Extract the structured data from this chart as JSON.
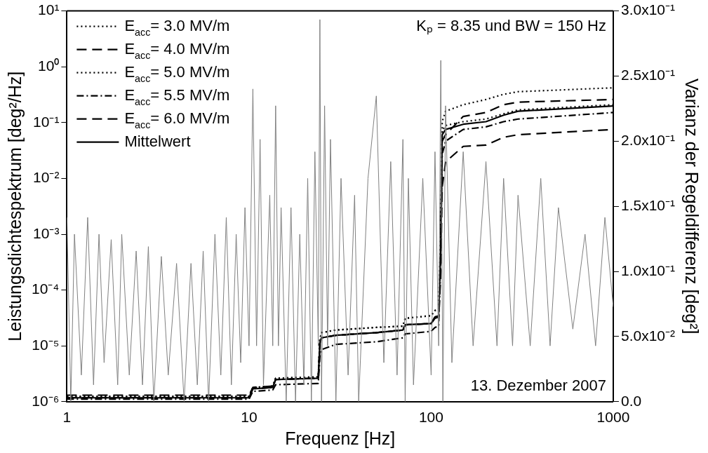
{
  "chart_data": {
    "type": "line",
    "xlabel": "Frequenz [Hz]",
    "ylabel": "Leistungsdichtespektrum [deg²/Hz]",
    "y2label": "Varianz der Regeldifferenz [deg²]",
    "log": "xy",
    "marker": "none",
    "legend": "top left",
    "xlim": [
      1,
      1000
    ],
    "xticks": [
      1,
      10,
      100,
      1000
    ],
    "ylim": [
      1e-06,
      10
    ],
    "yticks": [
      {
        "value": 1e-06,
        "label": "10⁻⁶"
      },
      {
        "value": 1e-05,
        "label": "10⁻⁵"
      },
      {
        "value": 0.0001,
        "label": "10⁻⁴"
      },
      {
        "value": 0.001,
        "label": "10⁻³"
      },
      {
        "value": 0.01,
        "label": "10⁻²"
      },
      {
        "value": 0.1,
        "label": "10⁻¹"
      },
      {
        "value": 1,
        "label": "10⁰"
      },
      {
        "value": 10,
        "label": "10¹"
      }
    ],
    "y2lim": [
      0,
      0.3
    ],
    "y2ticks": [
      {
        "value": 0,
        "label": "0.0"
      },
      {
        "value": 0.05,
        "label": "5.0x10⁻²"
      },
      {
        "value": 0.1,
        "label": "1.0x10⁻¹"
      },
      {
        "value": 0.15,
        "label": "1.5x10⁻¹"
      },
      {
        "value": 0.2,
        "label": "2.0x10⁻¹"
      },
      {
        "value": 0.25,
        "label": "2.5x10⁻¹"
      },
      {
        "value": 0.3,
        "label": "3.0x10⁻¹"
      }
    ],
    "annotations": [
      "Kₚ = 8.35 und BW = 150 Hz",
      "13. Dezember 2007"
    ],
    "series": [
      {
        "color": "#808080",
        "line_style": "solid",
        "x": [
          1,
          1.05,
          1.1,
          1.2,
          1.3,
          1.4,
          1.5,
          1.6,
          1.75,
          1.9,
          2,
          2.2,
          2.4,
          2.6,
          2.8,
          3,
          3.3,
          3.6,
          4,
          4.4,
          4.8,
          5.2,
          5.6,
          6,
          6.5,
          7,
          7.5,
          8,
          8.5,
          9,
          9.5,
          10,
          10.5,
          11,
          11.5,
          12,
          13,
          13.5,
          14,
          14.5,
          15,
          16,
          17,
          18,
          19,
          20,
          21,
          22,
          23,
          24,
          24.5,
          25,
          26,
          27,
          28,
          30,
          32,
          35,
          38,
          40,
          45,
          50,
          55,
          60,
          65,
          70,
          72,
          75,
          80,
          90,
          100,
          105,
          110,
          113,
          116,
          120,
          130,
          150,
          170,
          200,
          230,
          250,
          280,
          300,
          350,
          400,
          450,
          500,
          600,
          700,
          800,
          900,
          1000
        ],
        "values": [
          0.002,
          1e-06,
          0.001,
          3e-06,
          0.002,
          2e-06,
          0.001,
          5e-06,
          0.0008,
          2e-06,
          0.001,
          3e-06,
          0.0005,
          2e-06,
          0.0006,
          1e-06,
          0.0004,
          3e-06,
          0.0003,
          1e-06,
          0.0003,
          2e-06,
          0.0005,
          1e-06,
          0.001,
          3e-06,
          0.002,
          2e-06,
          0.001,
          5e-06,
          0.003,
          1e-05,
          0.4,
          1e-05,
          0.05,
          2e-06,
          0.005,
          1e-05,
          0.2,
          1e-05,
          0.003,
          1e-06,
          0.003,
          1e-06,
          0.001,
          2e-06,
          0.01,
          1e-06,
          0.03,
          1e-05,
          7,
          1e-06,
          0.2,
          1e-05,
          0.05,
          1e-06,
          0.01,
          3e-06,
          0.005,
          1e-06,
          0.01,
          0.3,
          5e-06,
          0.02,
          3e-06,
          0.05,
          1e-06,
          0.01,
          2e-06,
          0.01,
          3e-06,
          0.03,
          1e-05,
          1.3,
          1e-06,
          0.2,
          5e-06,
          0.03,
          1e-05,
          0.02,
          1e-05,
          0.01,
          1e-05,
          0.005,
          1e-05,
          0.01,
          1e-05,
          0.003,
          2e-05,
          0.001,
          1e-05,
          0.002,
          5e-05
        ]
      },
      {
        "name": "E$_{acc}$= 3.0 MV/m",
        "color": "#000000",
        "axis": "y2",
        "line_style": "dotted",
        "x": [
          1,
          10,
          10.5,
          11,
          13.5,
          14,
          24,
          24.5,
          25,
          30,
          50,
          70,
          72,
          100,
          105,
          110,
          113,
          115,
          120,
          150,
          200,
          250,
          300,
          1000
        ],
        "values": [
          0.004,
          0.004,
          0.011,
          0.011,
          0.012,
          0.018,
          0.019,
          0.048,
          0.053,
          0.055,
          0.057,
          0.058,
          0.064,
          0.066,
          0.07,
          0.071,
          0.13,
          0.208,
          0.212,
          0.215,
          0.217,
          0.221,
          0.224,
          0.228
        ]
      },
      {
        "name": "E$_{acc}$= 4.0 MV/m",
        "color": "#000000",
        "axis": "y2",
        "line_style": "dashed",
        "x": [
          1,
          10,
          10.5,
          11,
          13.5,
          14,
          24,
          24.5,
          25,
          30,
          50,
          70,
          72,
          100,
          105,
          110,
          113,
          115,
          120,
          150,
          200,
          250,
          300,
          1000
        ],
        "values": [
          0.003,
          0.003,
          0.01,
          0.01,
          0.011,
          0.017,
          0.018,
          0.045,
          0.049,
          0.051,
          0.053,
          0.055,
          0.059,
          0.06,
          0.065,
          0.066,
          0.12,
          0.2,
          0.205,
          0.219,
          0.222,
          0.228,
          0.23,
          0.232
        ]
      },
      {
        "name": "E$_{acc}$= 5.0 MV/m",
        "color": "#000000",
        "axis": "y2",
        "line_style": "dotted",
        "x": [
          1,
          10,
          10.5,
          11,
          13.5,
          14,
          24,
          24.5,
          25,
          30,
          50,
          70,
          72,
          100,
          105,
          110,
          113,
          115,
          120,
          150,
          200,
          250,
          300,
          1000
        ],
        "values": [
          0.004,
          0.004,
          0.011,
          0.011,
          0.012,
          0.018,
          0.019,
          0.048,
          0.053,
          0.055,
          0.057,
          0.058,
          0.064,
          0.066,
          0.07,
          0.071,
          0.13,
          0.215,
          0.223,
          0.228,
          0.232,
          0.236,
          0.238,
          0.241
        ]
      },
      {
        "name": "E$_{acc}$= 5.5 MV/m",
        "color": "#000000",
        "axis": "y2",
        "line_style": "dashdot",
        "x": [
          1,
          10,
          10.5,
          11,
          13.5,
          14,
          24,
          24.5,
          25,
          30,
          50,
          70,
          72,
          100,
          105,
          110,
          113,
          115,
          120,
          150,
          200,
          250,
          300,
          1000
        ],
        "values": [
          0.002,
          0.002,
          0.008,
          0.008,
          0.009,
          0.013,
          0.014,
          0.035,
          0.04,
          0.044,
          0.046,
          0.049,
          0.052,
          0.054,
          0.057,
          0.058,
          0.11,
          0.19,
          0.2,
          0.209,
          0.211,
          0.215,
          0.217,
          0.222
        ]
      },
      {
        "name": "E$_{acc}$= 6.0 MV/m",
        "color": "#000000",
        "axis": "y2",
        "line_style": "dashed",
        "x": [
          1,
          10,
          10.5,
          11,
          13.5,
          14,
          24,
          24.5,
          25,
          30,
          50,
          70,
          72,
          100,
          105,
          110,
          113,
          115,
          120,
          150,
          200,
          250,
          300,
          1000
        ],
        "values": [
          0.005,
          0.005,
          0.011,
          0.011,
          0.012,
          0.017,
          0.018,
          0.045,
          0.049,
          0.051,
          0.053,
          0.055,
          0.059,
          0.06,
          0.064,
          0.065,
          0.1,
          0.165,
          0.184,
          0.196,
          0.197,
          0.203,
          0.205,
          0.209
        ]
      },
      {
        "name": "Mittelwert",
        "color": "#000000",
        "axis": "y2",
        "line_style": "solid",
        "x": [
          1,
          10,
          10.5,
          11,
          13.5,
          14,
          24,
          24.5,
          25,
          30,
          50,
          70,
          72,
          100,
          105,
          110,
          113,
          115,
          120,
          150,
          200,
          250,
          300,
          1000
        ],
        "values": [
          0.003,
          0.003,
          0.01,
          0.01,
          0.011,
          0.017,
          0.018,
          0.045,
          0.049,
          0.051,
          0.053,
          0.055,
          0.059,
          0.06,
          0.065,
          0.066,
          0.12,
          0.205,
          0.209,
          0.213,
          0.215,
          0.22,
          0.223,
          0.227
        ]
      }
    ]
  }
}
